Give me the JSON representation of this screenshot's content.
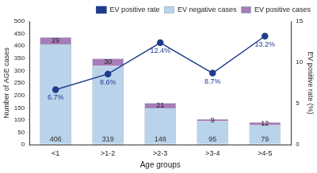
{
  "chart_data": {
    "type": "bar",
    "stacked": true,
    "categories": [
      "<1",
      ">1-2",
      ">2-3",
      ">3-4",
      ">4-5"
    ],
    "x_label": "Age groups",
    "y_label": "Number of AGE cases",
    "y2_label": "EV positive rate (%)",
    "ylim": [
      0,
      500
    ],
    "yticks": [
      0,
      50,
      100,
      150,
      200,
      250,
      300,
      350,
      400,
      450,
      500
    ],
    "y2lim": [
      0,
      15
    ],
    "y2ticks": [
      0,
      5,
      10,
      15
    ],
    "grid": false,
    "legend": "upper right",
    "data_labels": true,
    "series": [
      {
        "name": "EV negative cases",
        "color": "#b9d3ea",
        "values": [
          406,
          319,
          148,
          95,
          79
        ]
      },
      {
        "name": "EV positive cases",
        "color": "#a67db8",
        "values": [
          29,
          30,
          21,
          9,
          12
        ]
      },
      {
        "name": "EV positive rate",
        "type": "line",
        "axis": "y2",
        "color": "#1f3b8c",
        "marker": "circle",
        "values": [
          6.7,
          8.6,
          12.4,
          8.7,
          13.2
        ],
        "value_labels": [
          "6.7%",
          "8.6%",
          "12.4%",
          "8.7%",
          "13.2%"
        ]
      }
    ]
  }
}
